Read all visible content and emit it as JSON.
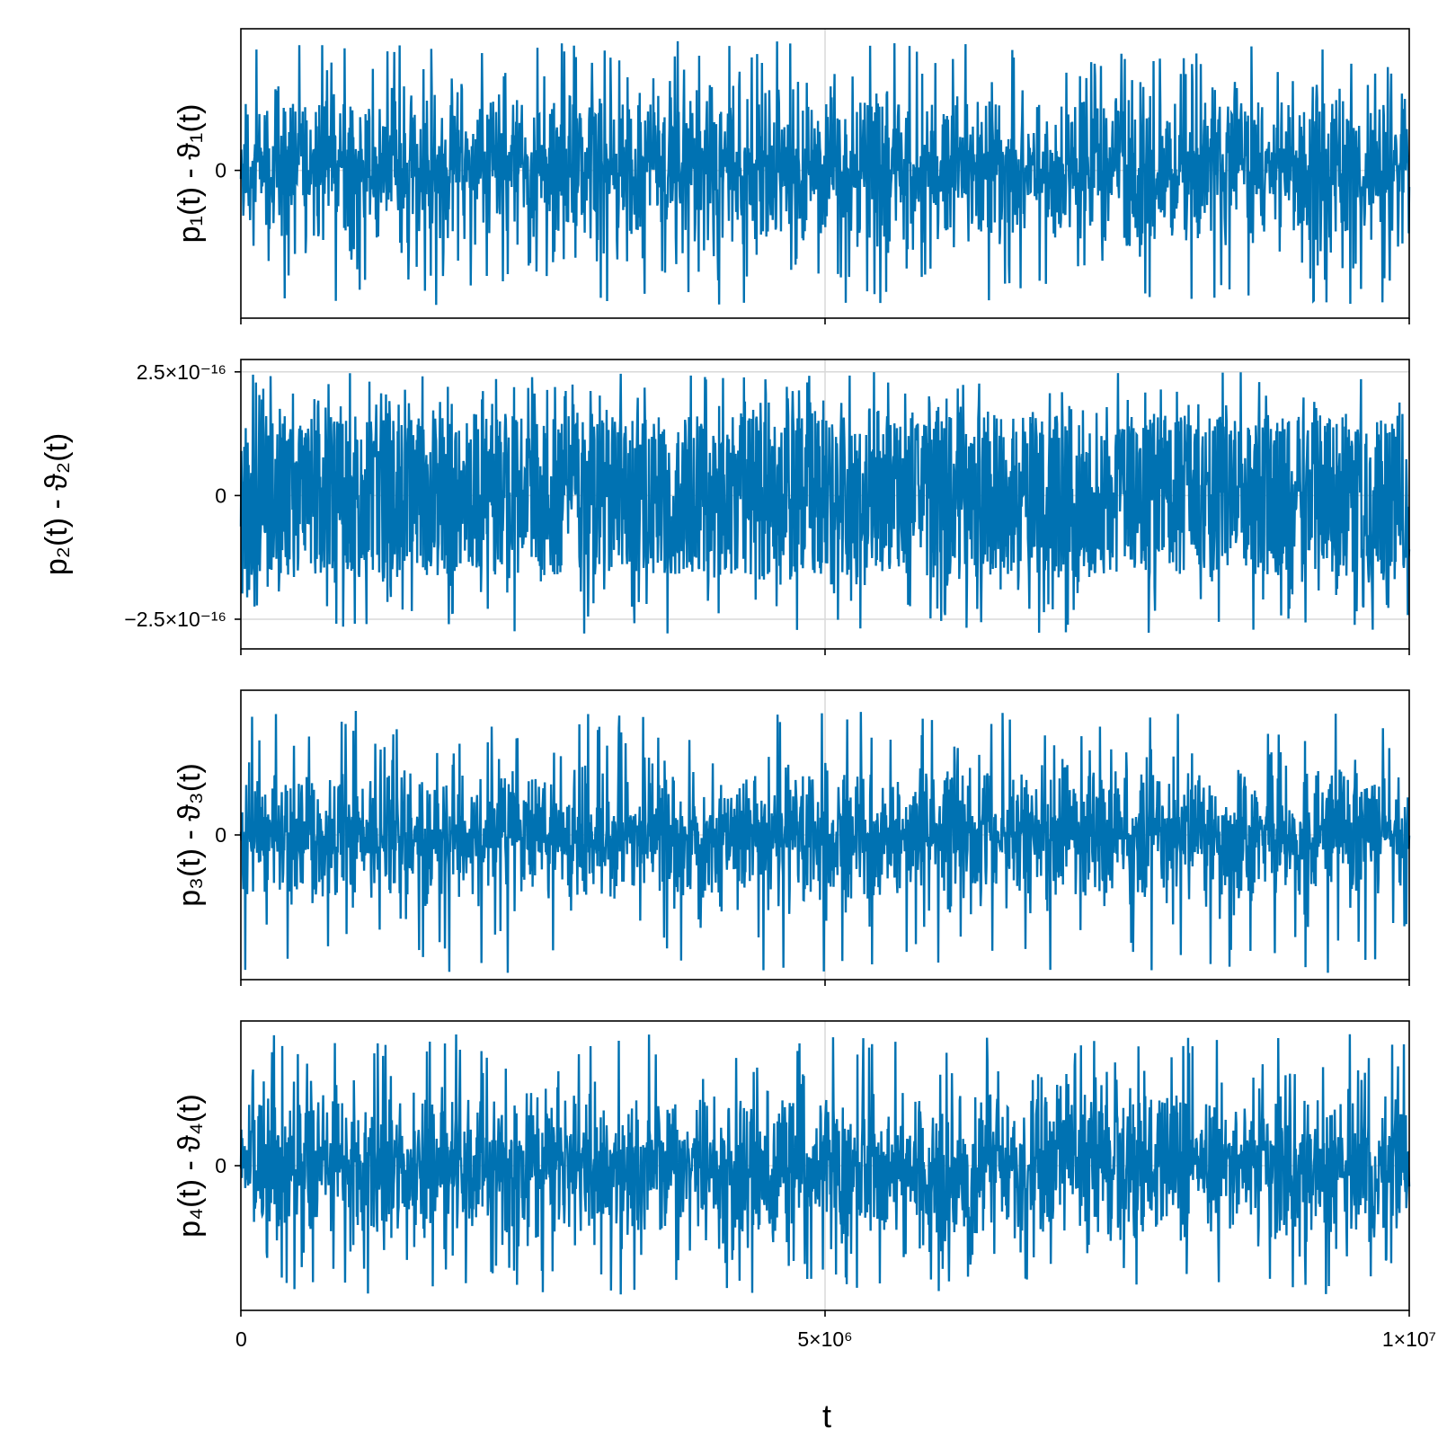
{
  "chart_data": {
    "type": "line",
    "xlabel": "t",
    "xlim": [
      0,
      10000000
    ],
    "x_ticks": [
      {
        "value": 0,
        "label": "0"
      },
      {
        "value": 5000000,
        "label": "5×10⁶"
      },
      {
        "value": 10000000,
        "label": "1×10⁷"
      }
    ],
    "line_color": "#0072b2",
    "grid": true,
    "panels": [
      {
        "ylabel": "p₁(t) - ϑ₁(t)",
        "ylim": [
          -1.2,
          1.15
        ],
        "y_ticks": [
          {
            "value": 0,
            "label": "0"
          }
        ],
        "noise": {
          "core": 0.2,
          "mid": 0.55,
          "peak_max": 1.05,
          "trough_min": -1.1,
          "seed": 11
        },
        "series_name": ""
      },
      {
        "ylabel": "p₂(t) - ϑ₂(t)",
        "ylim": [
          -3.1e-16,
          2.75e-16
        ],
        "y_ticks": [
          {
            "value": 2.5e-16,
            "label": "2.5×10⁻¹⁶"
          },
          {
            "value": 0,
            "label": "0"
          },
          {
            "value": -2.5e-16,
            "label": "−2.5×10⁻¹⁶"
          }
        ],
        "noise": {
          "core": 1.1e-16,
          "mid": 1.6e-16,
          "peak_max": 2.5e-16,
          "trough_min": -2.8e-16,
          "seed": 23
        },
        "series_name": ""
      },
      {
        "ylabel": "p₃(t) - ϑ₃(t)",
        "ylim": [
          -1.1,
          1.1
        ],
        "y_ticks": [
          {
            "value": 0,
            "label": "0"
          }
        ],
        "noise": {
          "core": 0.15,
          "mid": 0.45,
          "peak_max": 0.95,
          "trough_min": -1.05,
          "seed": 37
        },
        "series_name": ""
      },
      {
        "ylabel": "p₄(t) - ϑ₄(t)",
        "ylim": [
          -1.1,
          1.1
        ],
        "y_ticks": [
          {
            "value": 0,
            "label": "0"
          }
        ],
        "noise": {
          "core": 0.2,
          "mid": 0.5,
          "peak_max": 1.0,
          "trough_min": -0.98,
          "seed": 53
        },
        "series_name": ""
      }
    ]
  }
}
